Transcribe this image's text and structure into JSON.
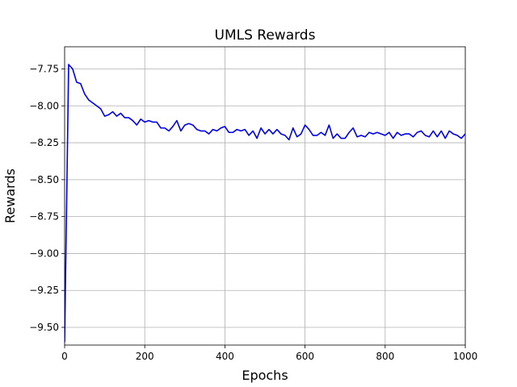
{
  "chart_data": {
    "type": "line",
    "title": "UMLS Rewards",
    "xlabel": "Epochs",
    "ylabel": "Rewards",
    "xlim": [
      0,
      1000
    ],
    "ylim": [
      -9.62,
      -7.6
    ],
    "xticks": [
      0,
      200,
      400,
      600,
      800,
      1000
    ],
    "xtick_labels": [
      "0",
      "200",
      "400",
      "600",
      "800",
      "1000"
    ],
    "yticks": [
      -7.75,
      -8.0,
      -8.25,
      -8.5,
      -8.75,
      -9.0,
      -9.25,
      -9.5
    ],
    "ytick_labels": [
      "−7.75",
      "−8.00",
      "−8.25",
      "−8.50",
      "−8.75",
      "−9.00",
      "−9.25",
      "−9.50"
    ],
    "grid": true,
    "series": [
      {
        "color": "#0000ee",
        "x": [
          0,
          10,
          20,
          30,
          40,
          50,
          60,
          70,
          80,
          90,
          100,
          110,
          120,
          130,
          140,
          150,
          160,
          170,
          180,
          190,
          200,
          210,
          220,
          230,
          240,
          250,
          260,
          270,
          280,
          290,
          300,
          310,
          320,
          330,
          340,
          350,
          360,
          370,
          380,
          390,
          400,
          410,
          420,
          430,
          440,
          450,
          460,
          470,
          480,
          490,
          500,
          510,
          520,
          530,
          540,
          550,
          560,
          570,
          580,
          590,
          600,
          610,
          620,
          630,
          640,
          650,
          660,
          670,
          680,
          690,
          700,
          710,
          720,
          730,
          740,
          750,
          760,
          770,
          780,
          790,
          800,
          810,
          820,
          830,
          840,
          850,
          860,
          870,
          880,
          890,
          900,
          910,
          920,
          930,
          940,
          950,
          960,
          970,
          980,
          990,
          1000
        ],
        "y": [
          -9.6,
          -7.72,
          -7.75,
          -7.84,
          -7.85,
          -7.92,
          -7.96,
          -7.98,
          -8.0,
          -8.02,
          -8.07,
          -8.06,
          -8.04,
          -8.07,
          -8.05,
          -8.08,
          -8.08,
          -8.1,
          -8.13,
          -8.09,
          -8.11,
          -8.1,
          -8.11,
          -8.11,
          -8.15,
          -8.15,
          -8.17,
          -8.14,
          -8.1,
          -8.17,
          -8.13,
          -8.12,
          -8.13,
          -8.16,
          -8.17,
          -8.17,
          -8.19,
          -8.16,
          -8.17,
          -8.15,
          -8.14,
          -8.18,
          -8.18,
          -8.16,
          -8.17,
          -8.16,
          -8.2,
          -8.17,
          -8.22,
          -8.15,
          -8.19,
          -8.16,
          -8.19,
          -8.16,
          -8.19,
          -8.2,
          -8.23,
          -8.15,
          -8.21,
          -8.19,
          -8.13,
          -8.16,
          -8.2,
          -8.2,
          -8.18,
          -8.2,
          -8.13,
          -8.22,
          -8.19,
          -8.22,
          -8.22,
          -8.18,
          -8.15,
          -8.21,
          -8.2,
          -8.21,
          -8.18,
          -8.19,
          -8.18,
          -8.19,
          -8.2,
          -8.18,
          -8.22,
          -8.18,
          -8.2,
          -8.19,
          -8.19,
          -8.21,
          -8.18,
          -8.17,
          -8.2,
          -8.21,
          -8.17,
          -8.21,
          -8.17,
          -8.22,
          -8.17,
          -8.19,
          -8.2,
          -8.22,
          -8.19
        ]
      }
    ]
  }
}
